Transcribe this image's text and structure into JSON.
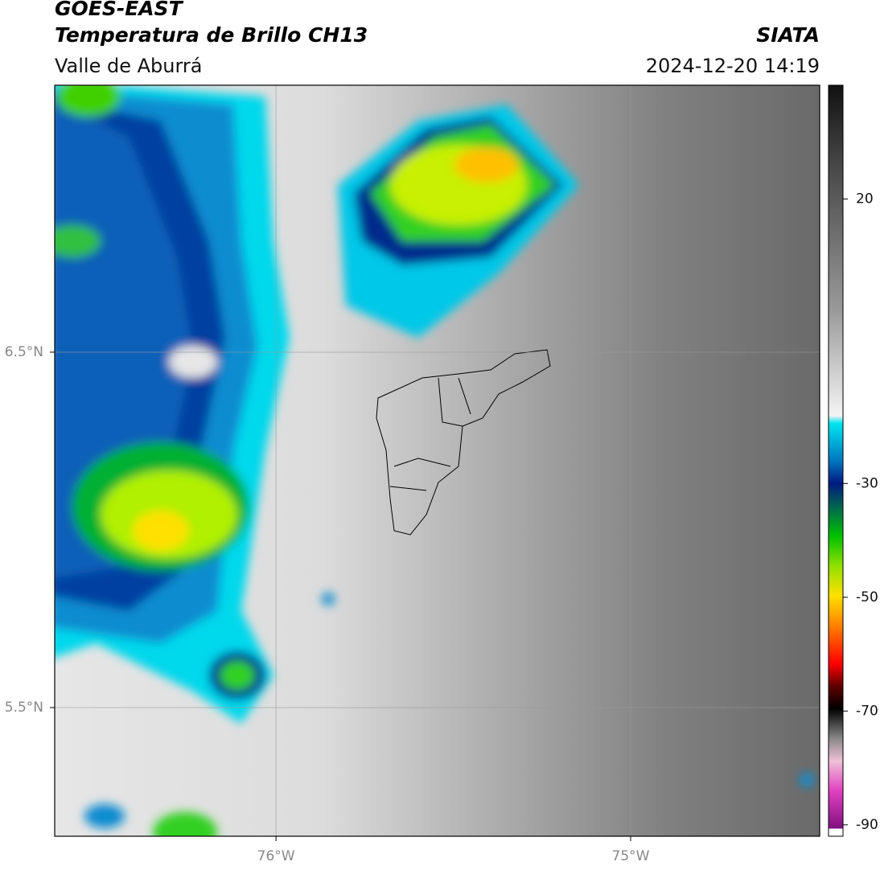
{
  "header": {
    "title": "GOES-EAST",
    "subtitle": "Temperatura de Brillo CH13",
    "region": "Valle de Aburrá",
    "source": "SIATA",
    "datetime": "2024-12-20 14:19"
  },
  "map": {
    "lat_lim": [
      5.138,
      7.251
    ],
    "lon_lim": [
      -76.624,
      -74.467
    ],
    "lat_ticks": [
      {
        "value": 6.5,
        "label": "6.5°N"
      },
      {
        "value": 5.5,
        "label": "5.5°N"
      }
    ],
    "lon_ticks": [
      {
        "value": -76,
        "label": "76°W"
      },
      {
        "value": -75,
        "label": "75°W"
      }
    ]
  },
  "colorbar": {
    "lim": [
      -92,
      40
    ],
    "ticks": [
      20,
      -30,
      -50,
      -70,
      -90
    ]
  }
}
